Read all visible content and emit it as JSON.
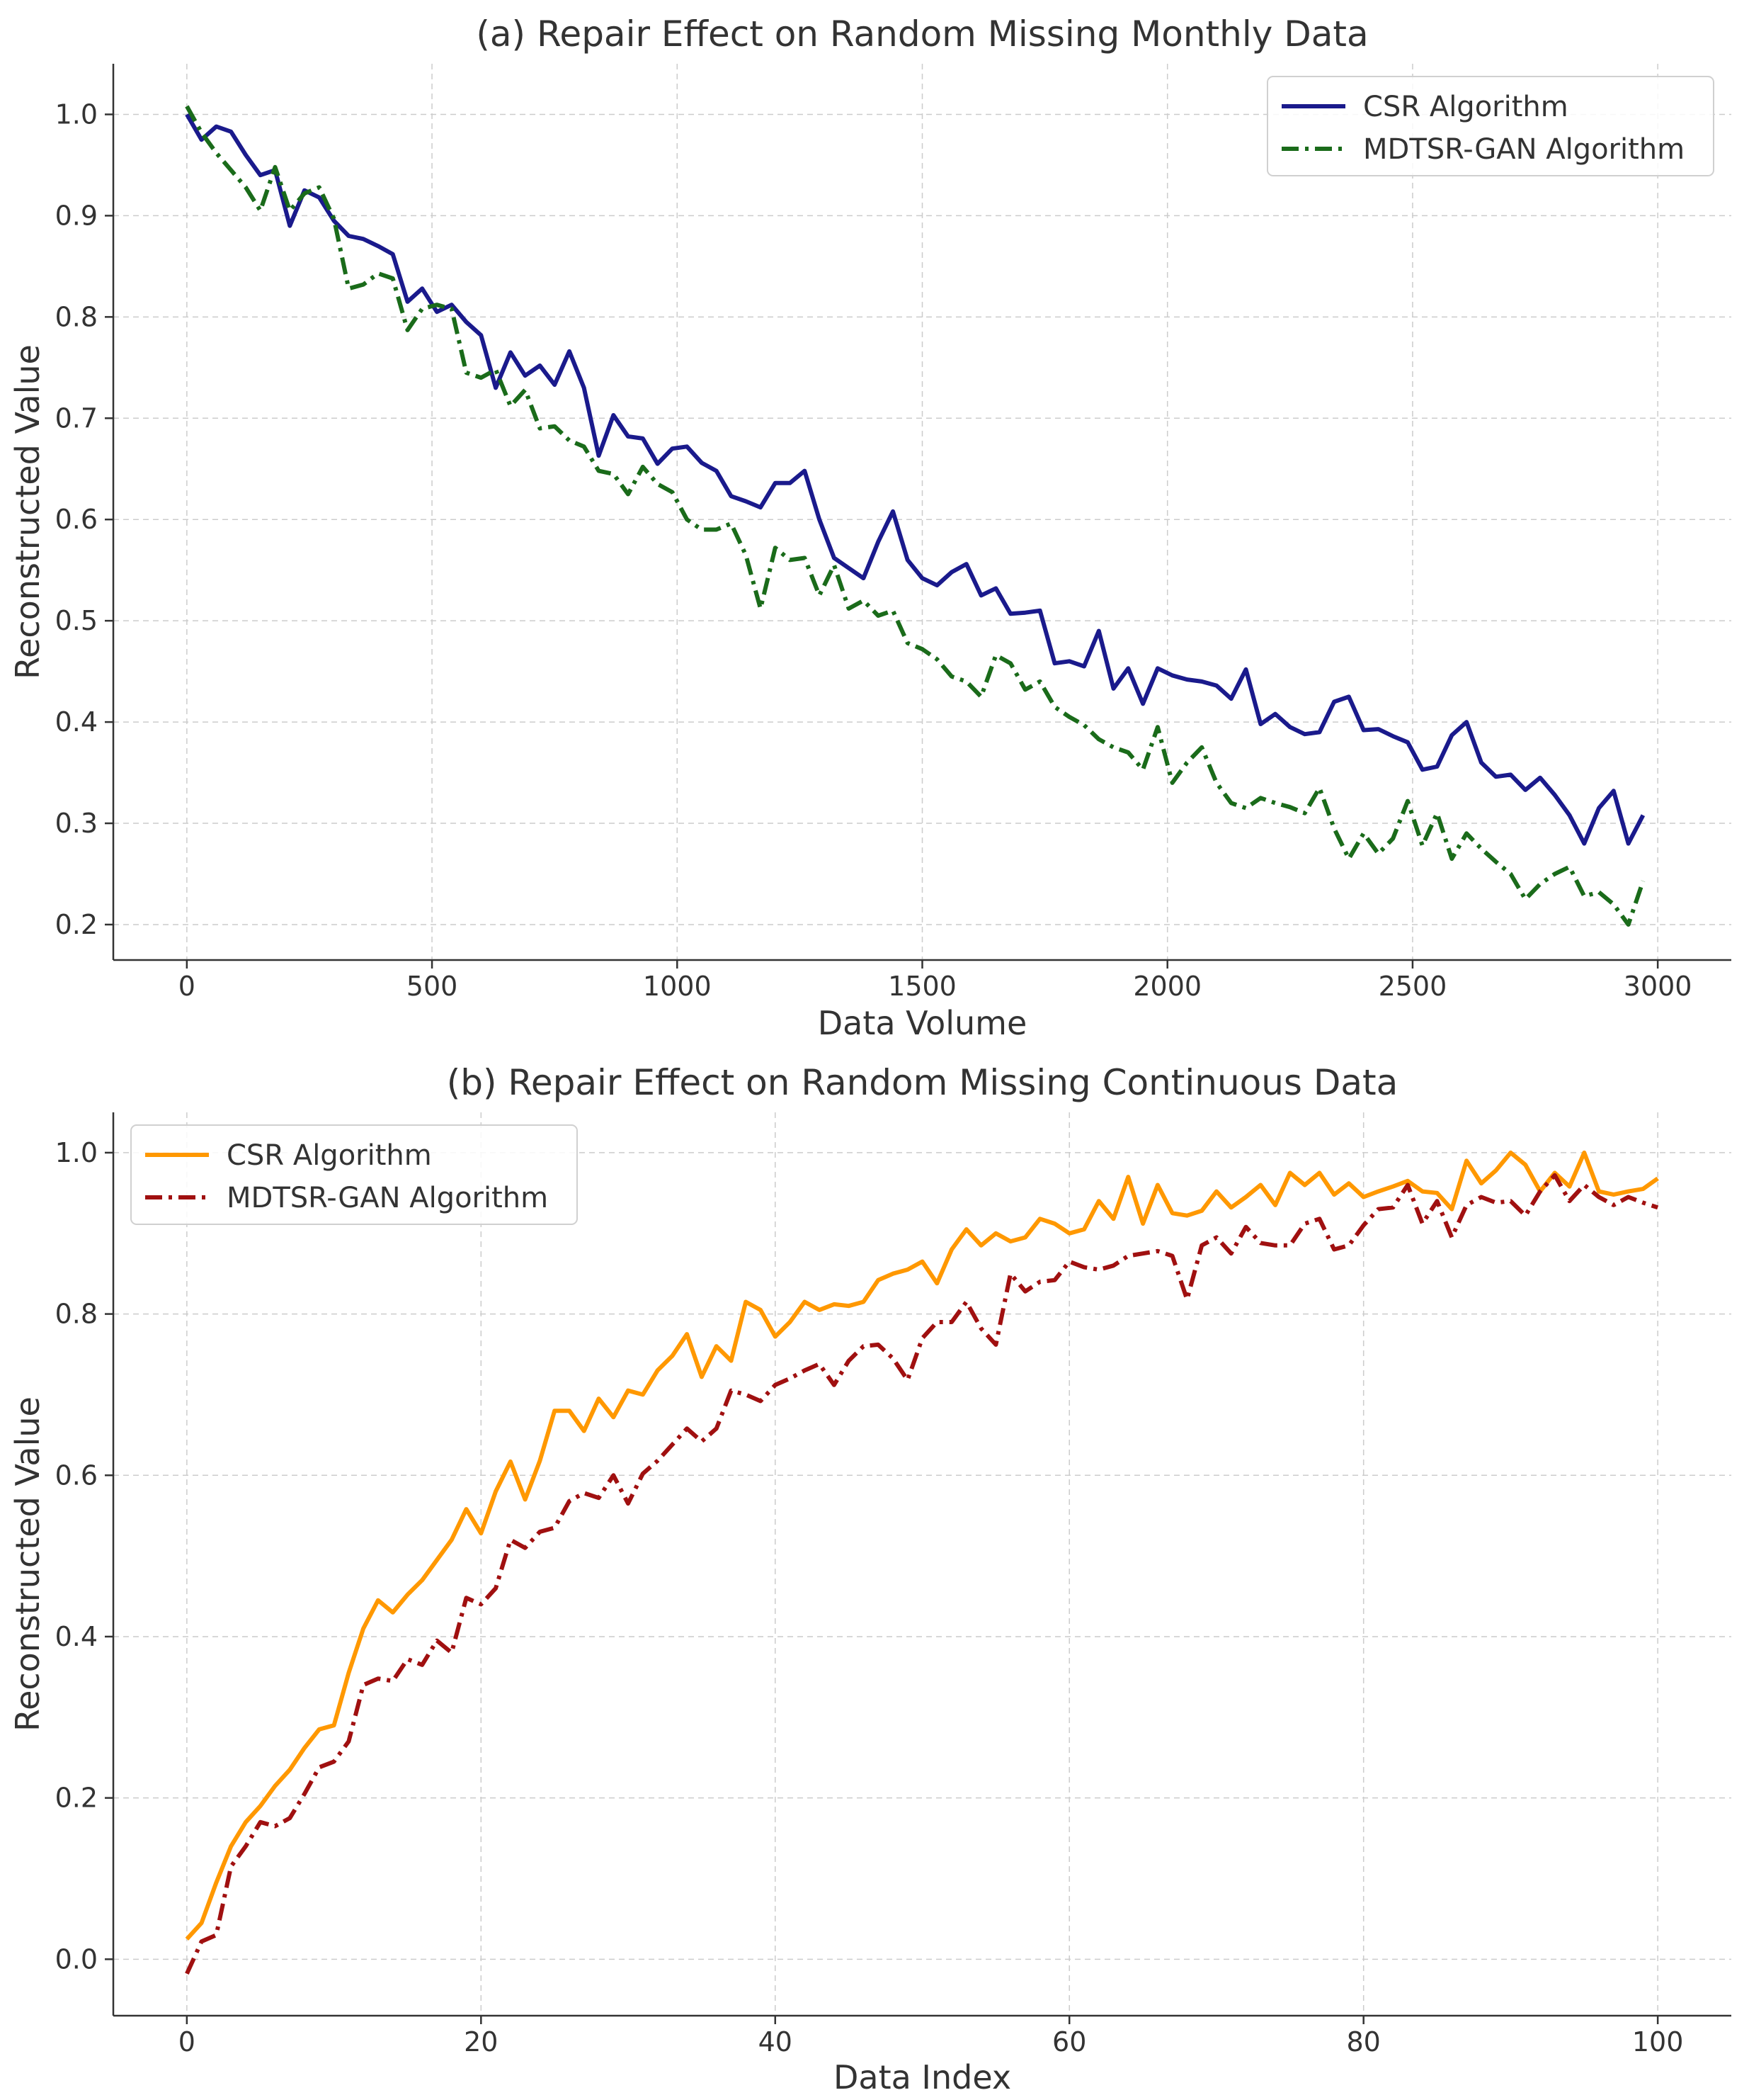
{
  "chart_data": [
    {
      "type": "line",
      "title": "(a) Repair Effect on Random Missing Monthly Data",
      "xlabel": "Data Volume",
      "ylabel": "Reconstructed Value",
      "xlim": [
        -150,
        3150
      ],
      "ylim": [
        0.165,
        1.05
      ],
      "xticks": [
        0,
        500,
        1000,
        1500,
        2000,
        2500,
        3000
      ],
      "yticks": [
        0.2,
        0.3,
        0.4,
        0.5,
        0.6,
        0.7,
        0.8,
        0.9,
        1.0
      ],
      "grid": true,
      "legend_position": "top-right",
      "x_start": 0,
      "x_step": 30,
      "series": [
        {
          "name": "CSR Algorithm",
          "color": "#1a1a8c",
          "style": "solid",
          "values": [
            1.0,
            0.975,
            0.988,
            0.983,
            0.96,
            0.94,
            0.945,
            0.89,
            0.925,
            0.918,
            0.895,
            0.88,
            0.877,
            0.87,
            0.862,
            0.815,
            0.828,
            0.805,
            0.812,
            0.795,
            0.782,
            0.73,
            0.765,
            0.742,
            0.752,
            0.733,
            0.766,
            0.73,
            0.663,
            0.703,
            0.682,
            0.68,
            0.655,
            0.67,
            0.672,
            0.656,
            0.648,
            0.623,
            0.618,
            0.612,
            0.636,
            0.636,
            0.648,
            0.6,
            0.562,
            0.552,
            0.542,
            0.578,
            0.608,
            0.56,
            0.542,
            0.535,
            0.548,
            0.556,
            0.525,
            0.532,
            0.507,
            0.508,
            0.51,
            0.458,
            0.46,
            0.455,
            0.49,
            0.433,
            0.453,
            0.418,
            0.453,
            0.446,
            0.442,
            0.44,
            0.436,
            0.423,
            0.452,
            0.398,
            0.408,
            0.395,
            0.388,
            0.39,
            0.42,
            0.425,
            0.392,
            0.393,
            0.386,
            0.38,
            0.353,
            0.356,
            0.387,
            0.4,
            0.36,
            0.346,
            0.348,
            0.333,
            0.345,
            0.328,
            0.308,
            0.28,
            0.315,
            0.332,
            0.28,
            0.308
          ]
        },
        {
          "name": "MDTSR-GAN Algorithm",
          "color": "#1a6b1a",
          "style": "dashdot",
          "values": [
            1.008,
            0.982,
            0.962,
            0.945,
            0.928,
            0.905,
            0.948,
            0.905,
            0.922,
            0.928,
            0.897,
            0.828,
            0.832,
            0.843,
            0.838,
            0.787,
            0.808,
            0.812,
            0.808,
            0.745,
            0.74,
            0.748,
            0.712,
            0.728,
            0.69,
            0.692,
            0.678,
            0.672,
            0.648,
            0.645,
            0.625,
            0.652,
            0.635,
            0.627,
            0.6,
            0.59,
            0.59,
            0.596,
            0.565,
            0.512,
            0.572,
            0.56,
            0.562,
            0.525,
            0.555,
            0.512,
            0.52,
            0.505,
            0.51,
            0.478,
            0.472,
            0.462,
            0.445,
            0.44,
            0.425,
            0.466,
            0.458,
            0.432,
            0.44,
            0.415,
            0.405,
            0.397,
            0.383,
            0.375,
            0.37,
            0.353,
            0.395,
            0.34,
            0.36,
            0.375,
            0.34,
            0.32,
            0.315,
            0.325,
            0.32,
            0.316,
            0.31,
            0.335,
            0.295,
            0.265,
            0.29,
            0.27,
            0.285,
            0.322,
            0.278,
            0.31,
            0.265,
            0.29,
            0.275,
            0.262,
            0.25,
            0.225,
            0.24,
            0.25,
            0.257,
            0.228,
            0.232,
            0.22,
            0.2,
            0.243
          ]
        }
      ]
    },
    {
      "type": "line",
      "title": "(b) Repair Effect on Random Missing Continuous Data",
      "xlabel": "Data Index",
      "ylabel": "Reconstructed Value",
      "xlim": [
        -5,
        105
      ],
      "ylim": [
        -0.07,
        1.05
      ],
      "xticks": [
        0,
        20,
        40,
        60,
        80,
        100
      ],
      "yticks": [
        0.0,
        0.2,
        0.4,
        0.6,
        0.8,
        1.0
      ],
      "grid": true,
      "legend_position": "top-left",
      "x_start": 0,
      "x_step": 1,
      "series": [
        {
          "name": "CSR Algorithm",
          "color": "#ff9800",
          "style": "solid",
          "values": [
            0.025,
            0.045,
            0.095,
            0.14,
            0.17,
            0.19,
            0.215,
            0.235,
            0.262,
            0.285,
            0.29,
            0.355,
            0.41,
            0.445,
            0.43,
            0.452,
            0.47,
            0.495,
            0.52,
            0.558,
            0.528,
            0.58,
            0.617,
            0.57,
            0.618,
            0.68,
            0.68,
            0.655,
            0.695,
            0.672,
            0.705,
            0.7,
            0.73,
            0.748,
            0.775,
            0.722,
            0.76,
            0.742,
            0.815,
            0.805,
            0.772,
            0.79,
            0.815,
            0.805,
            0.812,
            0.81,
            0.815,
            0.842,
            0.85,
            0.855,
            0.865,
            0.838,
            0.88,
            0.905,
            0.885,
            0.9,
            0.89,
            0.895,
            0.918,
            0.912,
            0.9,
            0.905,
            0.94,
            0.918,
            0.97,
            0.912,
            0.96,
            0.925,
            0.922,
            0.928,
            0.952,
            0.932,
            0.945,
            0.96,
            0.935,
            0.975,
            0.96,
            0.975,
            0.948,
            0.962,
            0.945,
            0.952,
            0.958,
            0.965,
            0.952,
            0.95,
            0.93,
            0.99,
            0.962,
            0.978,
            1.0,
            0.985,
            0.952,
            0.975,
            0.958,
            1.0,
            0.952,
            0.948,
            0.952,
            0.955,
            0.968
          ]
        },
        {
          "name": "MDTSR-GAN Algorithm",
          "color": "#a01010",
          "style": "dashdot",
          "values": [
            -0.018,
            0.022,
            0.03,
            0.115,
            0.14,
            0.17,
            0.165,
            0.175,
            0.205,
            0.238,
            0.245,
            0.27,
            0.34,
            0.348,
            0.345,
            0.372,
            0.365,
            0.395,
            0.38,
            0.448,
            0.44,
            0.46,
            0.52,
            0.51,
            0.53,
            0.535,
            0.568,
            0.578,
            0.572,
            0.6,
            0.565,
            0.602,
            0.618,
            0.638,
            0.658,
            0.642,
            0.658,
            0.705,
            0.7,
            0.692,
            0.712,
            0.72,
            0.73,
            0.738,
            0.712,
            0.742,
            0.76,
            0.762,
            0.745,
            0.718,
            0.77,
            0.79,
            0.79,
            0.815,
            0.782,
            0.762,
            0.85,
            0.828,
            0.84,
            0.842,
            0.865,
            0.858,
            0.855,
            0.86,
            0.872,
            0.875,
            0.878,
            0.872,
            0.818,
            0.885,
            0.895,
            0.875,
            0.908,
            0.888,
            0.885,
            0.885,
            0.912,
            0.918,
            0.88,
            0.885,
            0.91,
            0.93,
            0.932,
            0.96,
            0.912,
            0.94,
            0.895,
            0.935,
            0.945,
            0.938,
            0.94,
            0.922,
            0.952,
            0.972,
            0.94,
            0.96,
            0.945,
            0.935,
            0.945,
            0.938,
            0.932
          ]
        }
      ]
    }
  ]
}
